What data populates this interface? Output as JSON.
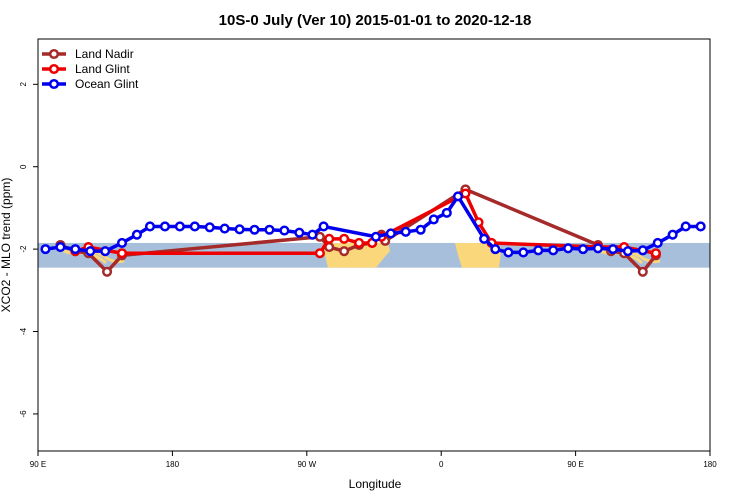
{
  "chart_data": {
    "type": "line",
    "title": "10S-0 July (Ver 10)   2015-01-01 to 2020-12-18",
    "xlabel": "Longitude",
    "ylabel": "XCO2 - MLO trend (ppm)",
    "xlim": [
      0,
      360
    ],
    "ylim": [
      -6.9,
      3.1
    ],
    "x_ticks": [
      {
        "value": 0,
        "label": "90 E"
      },
      {
        "value": 72,
        "label": "180"
      },
      {
        "value": 144,
        "label": "90 W"
      },
      {
        "value": 216,
        "label": "0"
      },
      {
        "value": 288,
        "label": "90 E"
      },
      {
        "value": 360,
        "label": "180"
      }
    ],
    "y_ticks": [
      {
        "value": -6,
        "label": "-6"
      },
      {
        "value": -4,
        "label": "-4"
      },
      {
        "value": -2,
        "label": "-2"
      },
      {
        "value": 0,
        "label": "0"
      },
      {
        "value": 2,
        "label": "2"
      }
    ],
    "background_map_band": {
      "y_range": [
        -2.45,
        -1.85
      ],
      "ocean_color": "#a8bfdc",
      "land_color": "#fad77a"
    },
    "legend_position": "top-left",
    "series": [
      {
        "name": "Land Nadir",
        "color": "#a52a2a",
        "points": [
          [
            12,
            -1.9
          ],
          [
            20,
            -2.05
          ],
          [
            27,
            -2.1
          ],
          [
            37,
            -2.55
          ],
          [
            45,
            -2.15
          ],
          [
            151,
            -1.7
          ],
          [
            156,
            -1.95
          ],
          [
            164,
            -2.05
          ],
          [
            172,
            -1.9
          ],
          [
            179,
            -1.85
          ],
          [
            184,
            -1.65
          ],
          [
            186,
            -1.8
          ],
          [
            229,
            -0.55
          ],
          [
            300,
            -1.9
          ],
          [
            307,
            -2.05
          ],
          [
            314,
            -2.1
          ],
          [
            324,
            -2.55
          ],
          [
            331,
            -2.15
          ]
        ]
      },
      {
        "name": "Land Glint",
        "color": "#ee0000",
        "points": [
          [
            20,
            -2.05
          ],
          [
            27,
            -1.95
          ],
          [
            45,
            -2.1
          ],
          [
            151,
            -2.1
          ],
          [
            156,
            -1.75
          ],
          [
            164,
            -1.75
          ],
          [
            172,
            -1.85
          ],
          [
            179,
            -1.85
          ],
          [
            184,
            -1.7
          ],
          [
            229,
            -0.65
          ],
          [
            236,
            -1.35
          ],
          [
            243,
            -1.85
          ],
          [
            300,
            -1.95
          ],
          [
            314,
            -1.95
          ],
          [
            331,
            -2.1
          ]
        ]
      },
      {
        "name": "Ocean Glint",
        "color": "#0000ee",
        "points": [
          [
            4,
            -2.0
          ],
          [
            12,
            -1.95
          ],
          [
            20,
            -2.0
          ],
          [
            28,
            -2.05
          ],
          [
            36,
            -2.05
          ],
          [
            45,
            -1.85
          ],
          [
            53,
            -1.65
          ],
          [
            60,
            -1.45
          ],
          [
            68,
            -1.45
          ],
          [
            76,
            -1.45
          ],
          [
            84,
            -1.45
          ],
          [
            92,
            -1.47
          ],
          [
            100,
            -1.5
          ],
          [
            108,
            -1.52
          ],
          [
            116,
            -1.53
          ],
          [
            124,
            -1.53
          ],
          [
            132,
            -1.55
          ],
          [
            140,
            -1.6
          ],
          [
            147,
            -1.65
          ],
          [
            153,
            -1.45
          ],
          [
            181,
            -1.7
          ],
          [
            189,
            -1.62
          ],
          [
            197,
            -1.58
          ],
          [
            205,
            -1.53
          ],
          [
            212,
            -1.28
          ],
          [
            219,
            -1.12
          ],
          [
            225,
            -0.72
          ],
          [
            239,
            -1.75
          ],
          [
            245,
            -2.0
          ],
          [
            252,
            -2.08
          ],
          [
            260,
            -2.08
          ],
          [
            268,
            -2.03
          ],
          [
            276,
            -2.03
          ],
          [
            284,
            -1.98
          ],
          [
            292,
            -2.0
          ],
          [
            300,
            -1.98
          ],
          [
            308,
            -2.0
          ],
          [
            316,
            -2.05
          ],
          [
            324,
            -2.03
          ],
          [
            332,
            -1.85
          ],
          [
            340,
            -1.65
          ],
          [
            347,
            -1.45
          ],
          [
            355,
            -1.45
          ]
        ]
      }
    ]
  }
}
